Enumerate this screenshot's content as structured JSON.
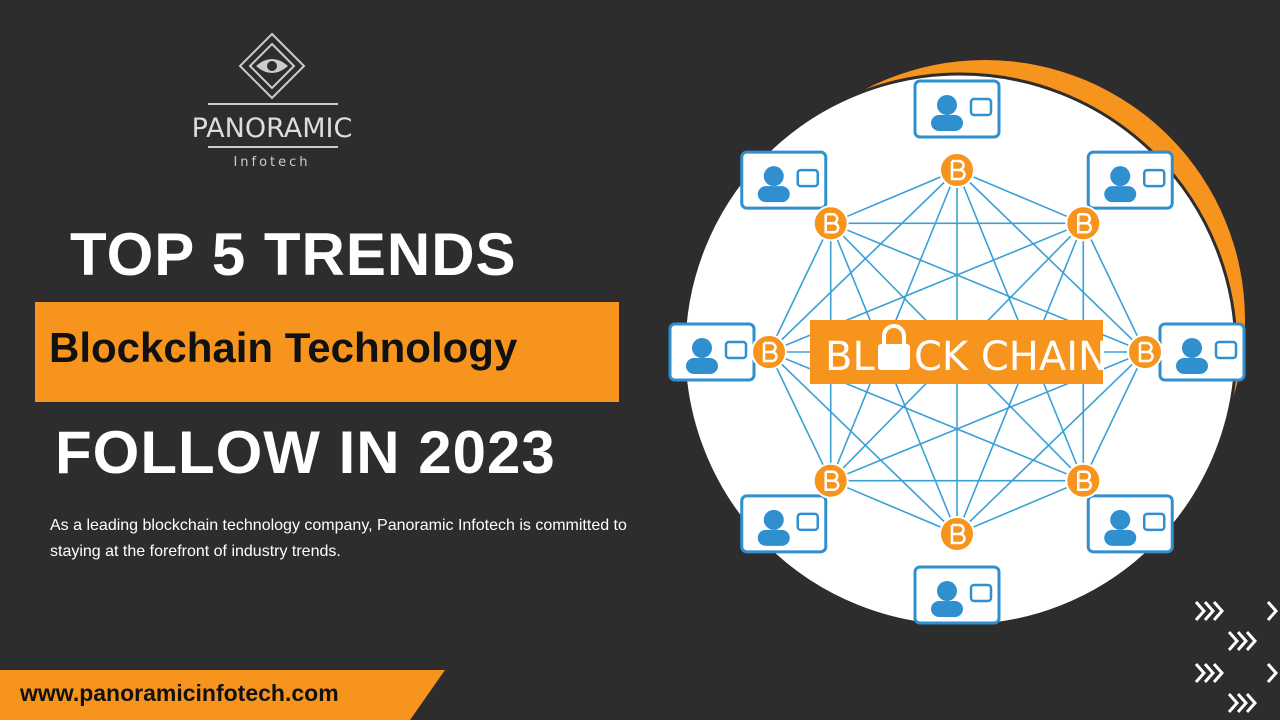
{
  "logo": {
    "name": "PANORAMIC",
    "tagline": "Infotech"
  },
  "headline": {
    "line1": "TOP 5 TRENDS",
    "highlight": "Blockchain Technology",
    "line2": "FOLLOW IN 2023"
  },
  "description": "As a leading blockchain technology company, Panoramic Infotech is committed to staying at the forefront of industry trends.",
  "footer": {
    "url": "www.panoramicinfotech.com"
  },
  "illustration": {
    "label_start": "BL",
    "label_end": "CK CHAIN"
  }
}
